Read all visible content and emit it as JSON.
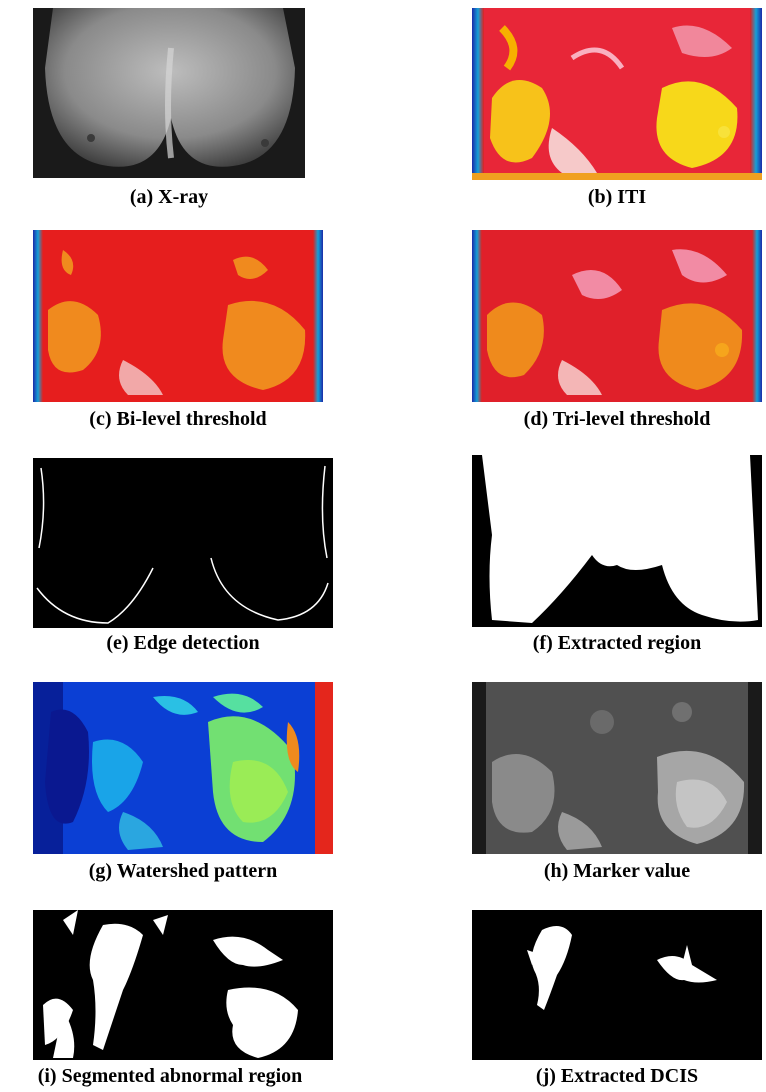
{
  "figure": {
    "panels": [
      {
        "id": "a",
        "caption": "(a) X-ray"
      },
      {
        "id": "b",
        "caption": "(b) ITI"
      },
      {
        "id": "c",
        "caption": "(c) Bi-level threshold"
      },
      {
        "id": "d",
        "caption": "(d) Tri-level threshold"
      },
      {
        "id": "e",
        "caption": "(e) Edge detection"
      },
      {
        "id": "f",
        "caption": "(f) Extracted region"
      },
      {
        "id": "g",
        "caption": "(g) Watershed pattern"
      },
      {
        "id": "h",
        "caption": "(h) Marker value"
      },
      {
        "id": "i",
        "caption": "(i) Segmented abnormal region"
      },
      {
        "id": "j",
        "caption": "(j) Extracted DCIS"
      }
    ]
  }
}
